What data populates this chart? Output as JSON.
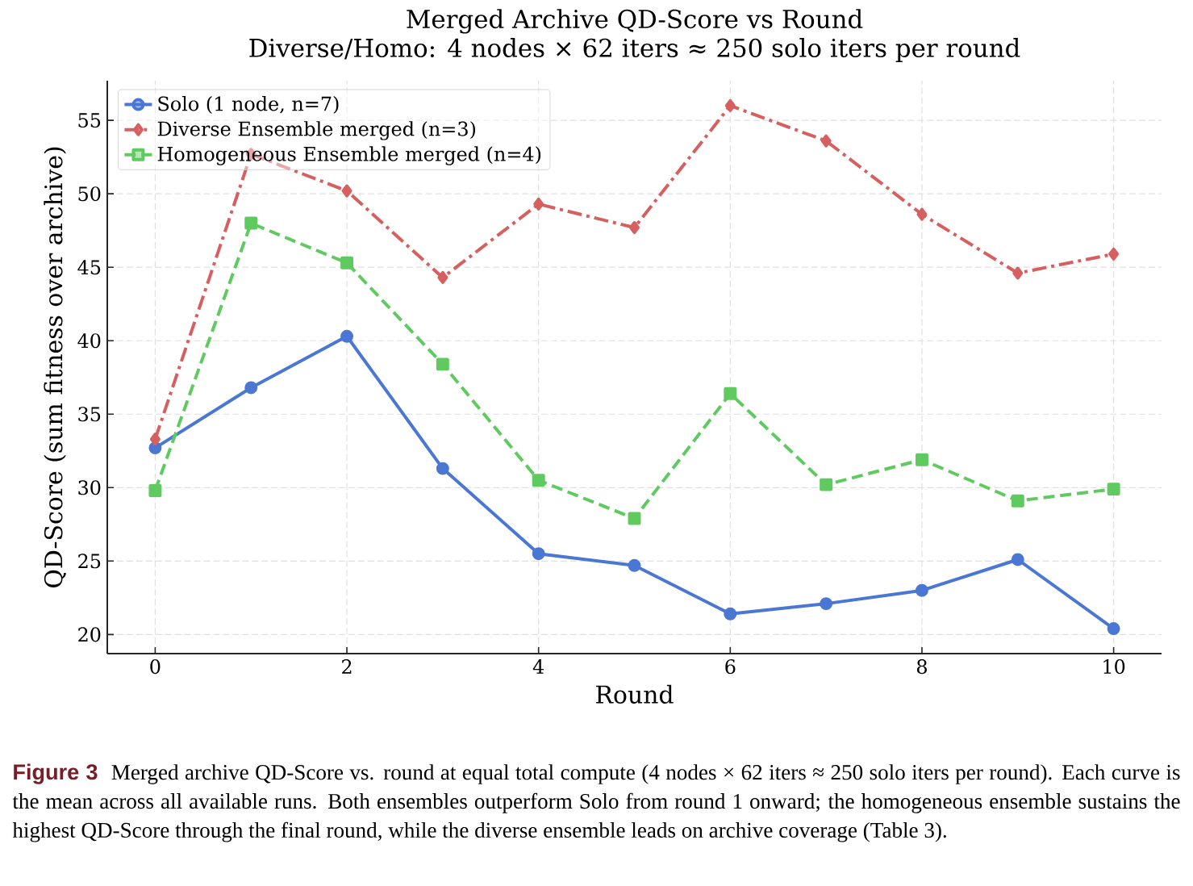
{
  "chart_data": {
    "type": "line",
    "title": "Merged Archive QD-Score vs Round",
    "subtitle": "Diverse/Homo: 4 nodes × 62 iters ≈ 250 solo iters per round",
    "xlabel": "Round",
    "ylabel": "QD-Score (sum fitness over archive)",
    "x": [
      0,
      1,
      2,
      3,
      4,
      5,
      6,
      7,
      8,
      9,
      10
    ],
    "series": [
      {
        "name": "Solo (1 node, n=7)",
        "color": "#4a77d4",
        "marker": "circle",
        "line_style": "solid",
        "values": [
          32.7,
          36.8,
          40.3,
          31.3,
          25.5,
          24.7,
          21.4,
          22.1,
          23.0,
          25.1,
          20.4
        ]
      },
      {
        "name": "Diverse Ensemble merged (n=3)",
        "color": "#d65f5f",
        "marker": "diamond",
        "line_style": "dashdot",
        "values": [
          33.3,
          52.7,
          50.2,
          44.3,
          49.3,
          47.7,
          56.0,
          53.6,
          48.6,
          44.6,
          45.9
        ]
      },
      {
        "name": "Homogeneous Ensemble merged (n=4)",
        "color": "#5fca5f",
        "marker": "square",
        "line_style": "dashed",
        "values": [
          29.8,
          48.0,
          45.3,
          38.4,
          30.5,
          27.9,
          36.4,
          30.2,
          31.9,
          29.1,
          29.9
        ]
      }
    ],
    "xlim": [
      -0.5,
      10.5
    ],
    "ylim": [
      18.7,
      57.7
    ],
    "xticks": [
      0,
      2,
      4,
      6,
      8,
      10
    ],
    "yticks": [
      20,
      25,
      30,
      35,
      40,
      45,
      50,
      55
    ],
    "grid": true,
    "legend": "top left",
    "annotations": [
      "Figure 3",
      "Merged archive QD-Score vs. round at equal total compute (4 nodes × 62 iters ≈ 250 solo iters per round). Each curve is the mean across all available runs. Both ensembles outperform Solo from round 1 onward; the homogeneous ensemble sustains the highest QD-Score through the final round, while the diverse ensemble leads on archive coverage (Table 3)."
    ]
  }
}
